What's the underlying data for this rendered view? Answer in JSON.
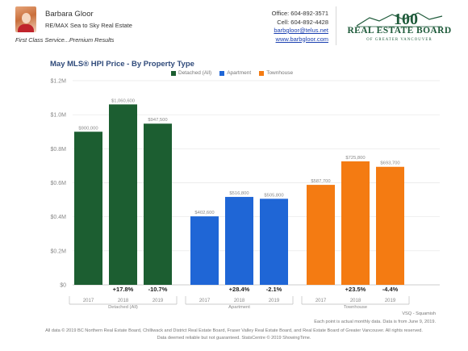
{
  "agent": {
    "name": "Barbara Gloor",
    "company": "RE/MAX Sea to Sky Real Estate",
    "slogan": "First Class Service...Premium Results"
  },
  "contact": {
    "office": "Office: 604-892-3571",
    "cell": "Cell: 604-892-4428",
    "email": "barbgloor@telus.net",
    "website": "www.barbgloor.com"
  },
  "logo": {
    "year_mark": "100",
    "title": "REAL ESTATE BOARD",
    "subtitle": "OF GREATER VANCOUVER"
  },
  "footnotes": {
    "region": "VSQ - Squamish",
    "data_note": "Each point is actual monthly data. Data is from June 9, 2019.",
    "copyright": "All data © 2019 BC Northern Real Estate Board, Chilliwack and District Real Estate Board, Fraser Valley Real Estate Board, and Real Estate Board of Greater Vancouver. All rights reserved.",
    "disclaimer": "Data deemed reliable but not guaranteed. StatsCentre © 2019 ShowingTime."
  },
  "chart_data": {
    "type": "bar",
    "title": "May MLS® HPI Price - By Property Type",
    "legend_position": "top-center",
    "grid": true,
    "ylim": [
      0,
      1200000
    ],
    "y_ticks": [
      "$0",
      "$0.2M",
      "$0.4M",
      "$0.6M",
      "$0.8M",
      "$1.0M",
      "$1.2M"
    ],
    "groups": [
      {
        "name": "Detached (All)",
        "color": "#1c5e31",
        "bars": [
          {
            "year": "2017",
            "value": 900000,
            "label": "$900,000"
          },
          {
            "year": "2018",
            "value": 1060600,
            "label": "$1,060,600"
          },
          {
            "year": "2019",
            "value": 947500,
            "label": "$947,500"
          }
        ],
        "changes": [
          "",
          "+17.8%",
          "-10.7%"
        ]
      },
      {
        "name": "Apartment",
        "color": "#1f66d6",
        "bars": [
          {
            "year": "2017",
            "value": 402600,
            "label": "$402,600"
          },
          {
            "year": "2018",
            "value": 516800,
            "label": "$516,800"
          },
          {
            "year": "2019",
            "value": 505800,
            "label": "$505,800"
          }
        ],
        "changes": [
          "",
          "+28.4%",
          "-2.1%"
        ]
      },
      {
        "name": "Townhouse",
        "color": "#f47b12",
        "bars": [
          {
            "year": "2017",
            "value": 587700,
            "label": "$587,700"
          },
          {
            "year": "2018",
            "value": 725800,
            "label": "$725,800"
          },
          {
            "year": "2019",
            "value": 693700,
            "label": "$693,700"
          }
        ],
        "changes": [
          "",
          "+23.5%",
          "-4.4%"
        ]
      }
    ]
  }
}
